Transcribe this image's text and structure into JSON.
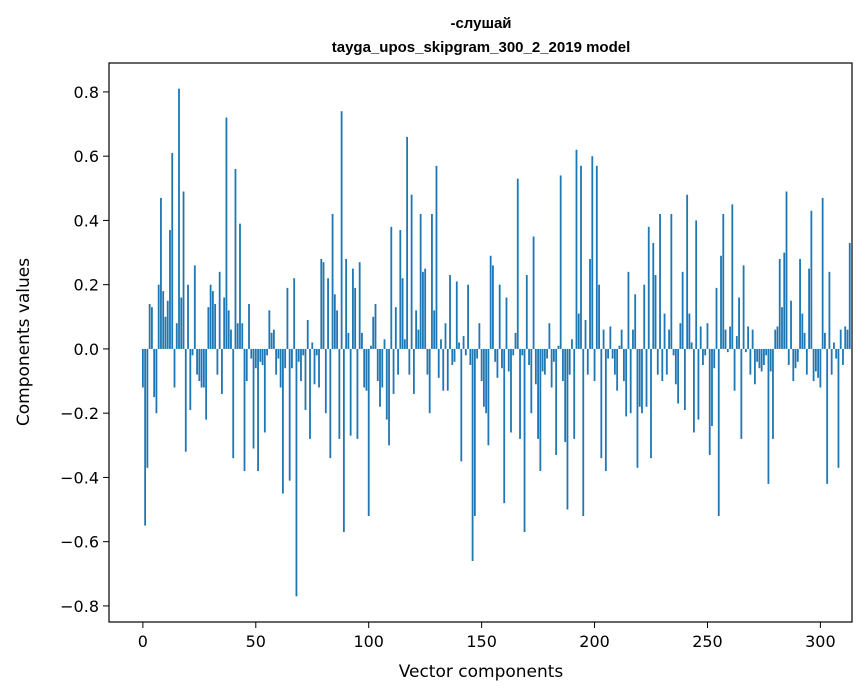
{
  "chart_data": {
    "type": "bar",
    "title": "-слушай",
    "subtitle": "tayga_upos_skipgram_300_2_2019 model",
    "xlabel": "Vector components",
    "ylabel": "Components values",
    "xlim": [
      -15,
      314
    ],
    "ylim": [
      -0.85,
      0.89
    ],
    "xticks": [
      0,
      50,
      100,
      150,
      200,
      250,
      300
    ],
    "yticks": [
      -0.8,
      -0.6,
      -0.4,
      -0.2,
      0.0,
      0.2,
      0.4,
      0.6,
      0.8
    ],
    "xtick_labels": [
      "0",
      "50",
      "100",
      "150",
      "200",
      "250",
      "300"
    ],
    "ytick_labels": [
      "−0.8",
      "−0.6",
      "−0.4",
      "−0.2",
      "0.0",
      "0.2",
      "0.4",
      "0.6",
      "0.8"
    ],
    "bar_color": "#1f77b4",
    "grid": false,
    "values": [
      -0.12,
      -0.55,
      -0.37,
      0.14,
      0.13,
      -0.15,
      -0.2,
      0.2,
      0.47,
      0.18,
      0.1,
      0.15,
      0.37,
      0.61,
      -0.12,
      0.08,
      0.81,
      0.16,
      0.49,
      -0.32,
      0.2,
      -0.19,
      -0.02,
      0.26,
      -0.08,
      -0.1,
      -0.12,
      -0.12,
      -0.22,
      0.13,
      0.2,
      0.18,
      0.14,
      -0.08,
      0.24,
      -0.14,
      0.16,
      0.72,
      0.12,
      0.06,
      -0.34,
      0.56,
      0.08,
      0.39,
      0.08,
      -0.38,
      -0.1,
      0.14,
      -0.03,
      -0.31,
      -0.06,
      -0.38,
      -0.04,
      -0.05,
      -0.26,
      -0.02,
      0.12,
      0.05,
      0.06,
      -0.08,
      -0.03,
      -0.12,
      -0.45,
      -0.06,
      0.19,
      -0.41,
      -0.06,
      0.22,
      -0.77,
      -0.04,
      -0.1,
      -0.02,
      -0.19,
      0.09,
      -0.28,
      0.02,
      -0.11,
      -0.02,
      -0.12,
      0.28,
      0.27,
      -0.2,
      0.22,
      -0.34,
      0.42,
      0.17,
      0.12,
      -0.28,
      0.74,
      -0.57,
      0.28,
      0.05,
      -0.27,
      0.25,
      0.19,
      -0.28,
      0.27,
      0.05,
      -0.12,
      -0.13,
      -0.52,
      0.01,
      0.1,
      0.14,
      -0.1,
      -0.18,
      -0.12,
      0.03,
      -0.22,
      -0.3,
      0.38,
      -0.14,
      0.13,
      -0.08,
      0.37,
      0.22,
      0.03,
      0.66,
      -0.08,
      0.48,
      -0.14,
      0.12,
      0.06,
      0.42,
      0.24,
      0.25,
      -0.08,
      -0.2,
      0.42,
      0.12,
      0.57,
      -0.09,
      0.03,
      -0.13,
      0.08,
      -0.13,
      0.23,
      -0.05,
      -0.04,
      0.21,
      0.02,
      -0.35,
      0.04,
      -0.02,
      0.2,
      -0.05,
      -0.66,
      -0.52,
      -0.03,
      0.08,
      -0.1,
      -0.18,
      -0.2,
      -0.3,
      0.29,
      0.26,
      -0.04,
      -0.09,
      0.2,
      -0.06,
      -0.48,
      0.16,
      -0.07,
      -0.26,
      -0.02,
      0.05,
      0.53,
      -0.28,
      -0.02,
      -0.57,
      0.23,
      -0.05,
      -0.2,
      0.35,
      -0.11,
      -0.28,
      -0.38,
      -0.07,
      -0.08,
      -0.03,
      0.08,
      -0.12,
      -0.04,
      -0.33,
      0.01,
      0.54,
      -0.1,
      -0.29,
      -0.5,
      -0.08,
      0.03,
      -0.28,
      0.62,
      0.11,
      0.57,
      -0.52,
      0.09,
      -0.08,
      0.28,
      0.6,
      -0.1,
      0.57,
      0.2,
      -0.34,
      0.06,
      -0.38,
      -0.03,
      0.07,
      -0.03,
      -0.08,
      -0.13,
      0.01,
      0.06,
      -0.1,
      -0.21,
      0.24,
      -0.2,
      0.06,
      0.17,
      -0.37,
      -0.18,
      -0.2,
      0.2,
      -0.18,
      0.38,
      -0.34,
      0.33,
      0.23,
      -0.08,
      0.42,
      -0.1,
      0.11,
      -0.08,
      0.06,
      0.42,
      -0.02,
      -0.11,
      -0.17,
      0.08,
      0.24,
      -0.19,
      0.48,
      0.11,
      0.02,
      -0.26,
      0.4,
      -0.22,
      0.07,
      -0.05,
      -0.02,
      0.08,
      -0.33,
      -0.24,
      -0.06,
      0.19,
      -0.52,
      0.29,
      0.42,
      0.06,
      -0.01,
      0.07,
      0.45,
      -0.13,
      0.04,
      0.16,
      -0.28,
      0.26,
      -0.01,
      0.07,
      -0.08,
      0.06,
      -0.11,
      -0.04,
      -0.06,
      -0.07,
      -0.05,
      -0.02,
      -0.42,
      -0.07,
      -0.28,
      0.06,
      0.07,
      0.28,
      0.13,
      0.3,
      0.49,
      -0.05,
      0.15,
      -0.1,
      -0.06,
      -0.04,
      0.28,
      0.11,
      0.05,
      -0.08,
      0.25,
      0.43,
      -0.1,
      -0.07,
      -0.09,
      -0.12,
      0.47,
      0.05,
      -0.42,
      0.24,
      -0.08,
      0.02,
      -0.03,
      -0.37,
      0.06,
      -0.05,
      0.07,
      0.06,
      0.33
    ]
  }
}
